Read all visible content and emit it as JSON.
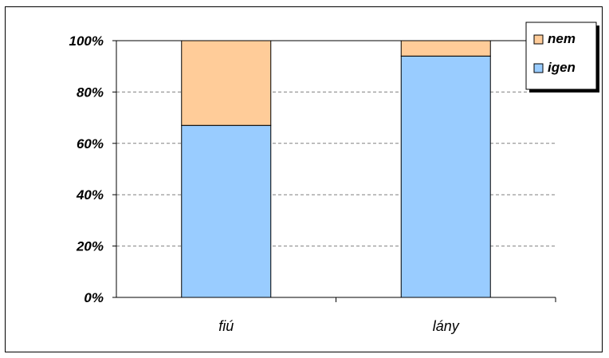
{
  "chart_data": {
    "type": "bar",
    "stacked": true,
    "percent": true,
    "categories": [
      "fiú",
      "lány"
    ],
    "series": [
      {
        "name": "igen",
        "values": [
          67,
          94
        ],
        "color": "#99ccff"
      },
      {
        "name": "nem",
        "values": [
          33,
          6
        ],
        "color": "#ffcc99"
      }
    ],
    "ylim": [
      0,
      100
    ],
    "yticks": [
      "0%",
      "20%",
      "40%",
      "60%",
      "80%",
      "100%"
    ],
    "grid": true,
    "legend": "top-right",
    "legend_order": [
      "nem",
      "igen"
    ],
    "title": "",
    "xlabel": "",
    "ylabel": ""
  }
}
